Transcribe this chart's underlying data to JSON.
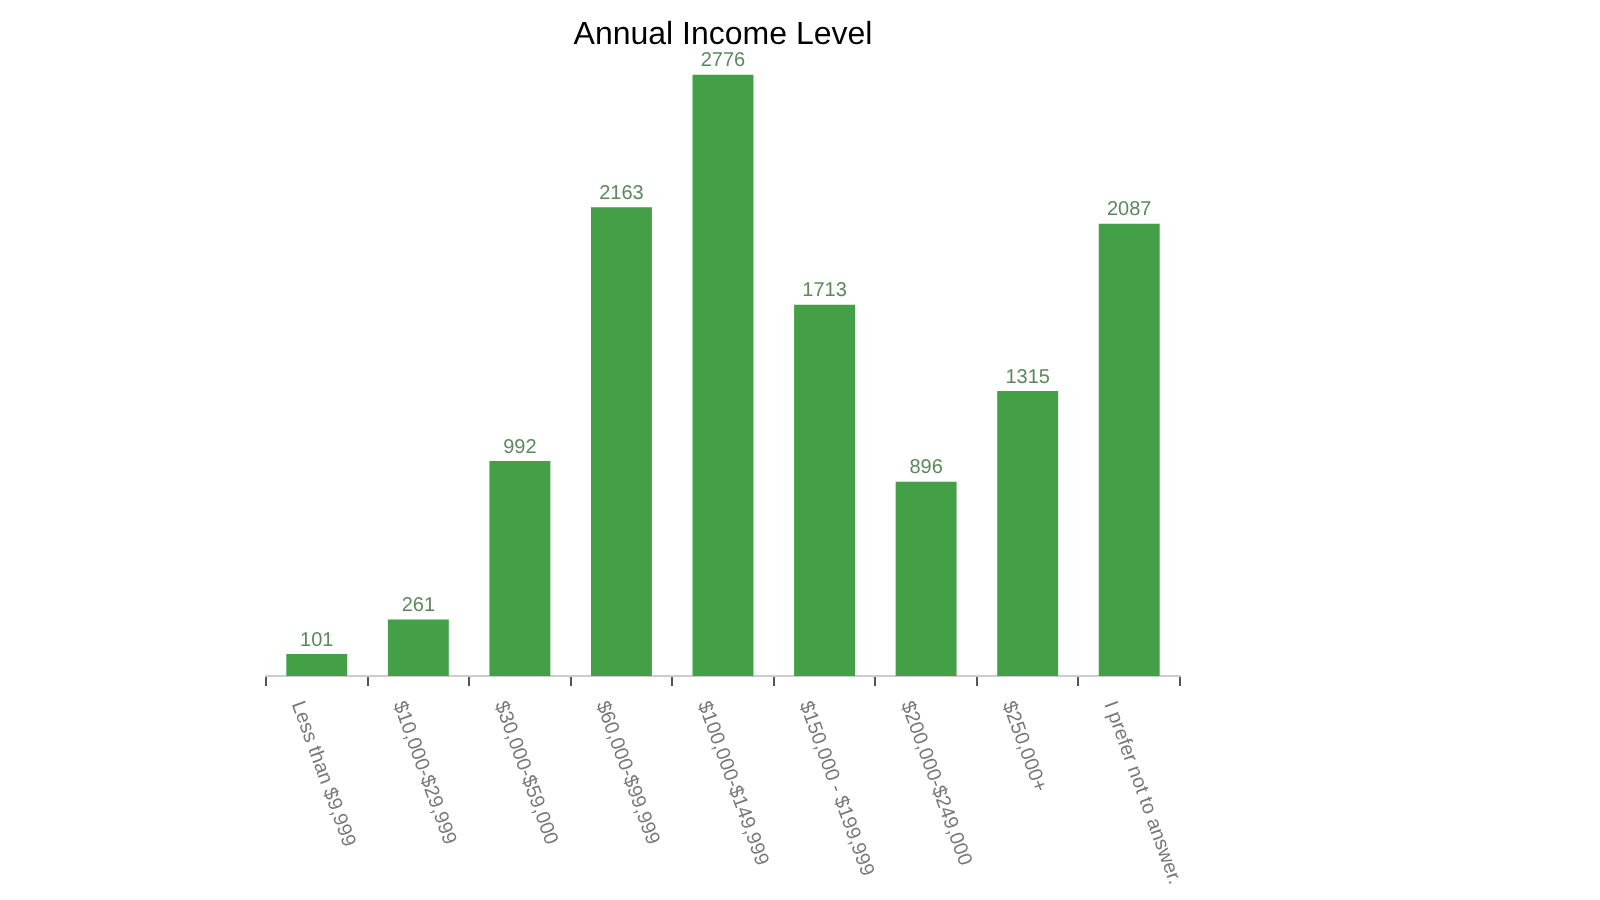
{
  "chart_data": {
    "type": "bar",
    "title": "Annual Income Level",
    "categories": [
      "Less than $9,999",
      "$10,000-$29,999",
      "$30,000-$59,000",
      "$60,000-$99,999",
      "$100,000-$149,999",
      "$150,000 - $199,999",
      "$200,000-$249,000",
      "$250,000+",
      "I prefer not to answer."
    ],
    "values": [
      101,
      261,
      992,
      2163,
      2776,
      1713,
      896,
      1315,
      2087
    ],
    "color": "#43a047",
    "data_labels": true,
    "legend": false,
    "grid": false
  }
}
